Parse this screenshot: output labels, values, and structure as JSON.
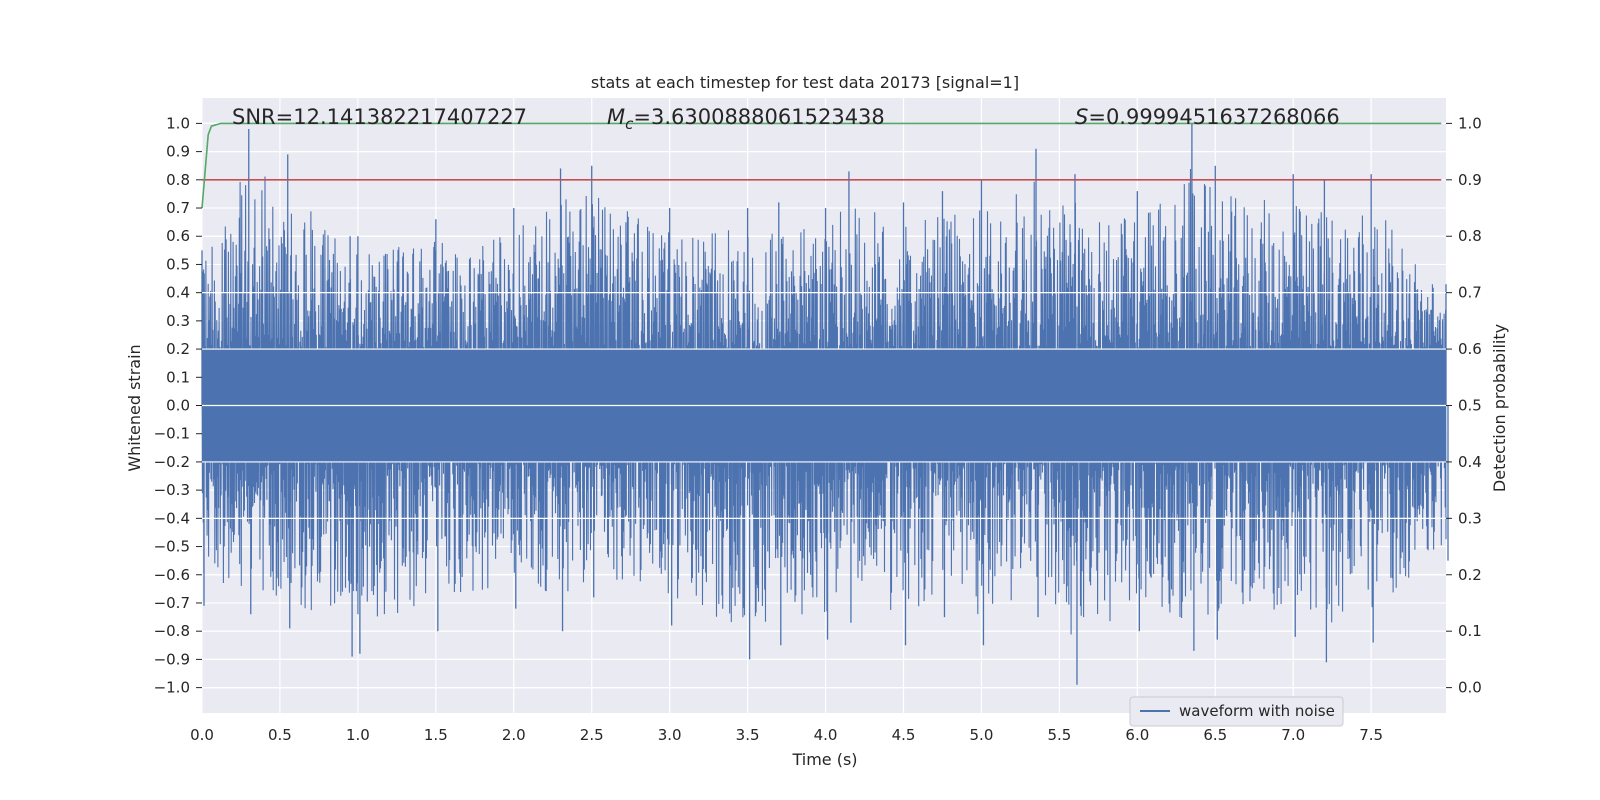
{
  "chart_data": {
    "type": "line",
    "title": "stats at each timestep for test data 20173 [signal=1]",
    "xlabel": "Time (s)",
    "ylabel_left": "Whitened strain",
    "ylabel_right": "Detection probability",
    "xlim": [
      0.0,
      7.98
    ],
    "ylim_left": [
      -1.09,
      1.09
    ],
    "ylim_right": [
      -0.045,
      1.045
    ],
    "x_ticks": [
      "0.0",
      "0.5",
      "1.0",
      "1.5",
      "2.0",
      "2.5",
      "3.0",
      "3.5",
      "4.0",
      "4.5",
      "5.0",
      "5.5",
      "6.0",
      "6.5",
      "7.0",
      "7.5"
    ],
    "y_ticks_left": [
      "1.0",
      "0.9",
      "0.8",
      "0.7",
      "0.6",
      "0.5",
      "0.4",
      "0.3",
      "0.2",
      "0.1",
      "0.0",
      "−0.1",
      "−0.2",
      "−0.3",
      "−0.4",
      "−0.5",
      "−0.6",
      "−0.7",
      "−0.8",
      "−0.9",
      "−1.0"
    ],
    "y_ticks_right": [
      "1.0",
      "0.9",
      "0.8",
      "0.7",
      "0.6",
      "0.5",
      "0.4",
      "0.3",
      "0.2",
      "0.1",
      "0.0"
    ],
    "grid": true,
    "legend_position": "lower-right",
    "annotations": {
      "snr": "SNR=12.141382217407227",
      "mc_symbol": "M",
      "mc_sub": "c",
      "mc_value": "=3.6300888061523438",
      "s_symbol": "S",
      "s_value": "=0.9999451637268066"
    },
    "series": [
      {
        "name": "waveform with noise",
        "axis": "left",
        "color": "#4c72b0",
        "kind": "dense-noise",
        "envelope_x": [
          0.0,
          0.3,
          0.55,
          0.95,
          1.0,
          1.5,
          2.0,
          2.3,
          2.5,
          3.0,
          3.5,
          3.7,
          4.0,
          4.15,
          4.5,
          4.75,
          5.0,
          5.35,
          5.6,
          6.0,
          6.35,
          6.5,
          7.0,
          7.2,
          7.5,
          7.98
        ],
        "envelope_max": [
          0.55,
          0.98,
          0.89,
          0.6,
          0.6,
          0.66,
          0.7,
          0.84,
          0.85,
          0.7,
          0.7,
          0.72,
          0.7,
          0.83,
          0.72,
          0.76,
          0.8,
          0.91,
          0.82,
          0.76,
          1.0,
          0.85,
          0.82,
          0.8,
          0.82,
          0.43
        ],
        "envelope_min": [
          -0.71,
          -0.74,
          -0.79,
          -0.89,
          -0.88,
          -0.8,
          -0.72,
          -0.8,
          -0.68,
          -0.78,
          -0.9,
          -0.85,
          -0.83,
          -0.77,
          -0.85,
          -0.75,
          -0.85,
          -0.75,
          -0.99,
          -0.8,
          -0.87,
          -0.83,
          -0.82,
          -0.91,
          -0.84,
          -0.55
        ]
      },
      {
        "name": "",
        "axis": "right",
        "color": "#55a868",
        "x": [
          0.0,
          0.04,
          0.06,
          0.12,
          7.95
        ],
        "y": [
          0.85,
          0.98,
          0.995,
          1.0,
          1.0
        ]
      },
      {
        "name": "",
        "axis": "right",
        "color": "#c44e52",
        "x": [
          0.0,
          7.95
        ],
        "y": [
          0.9,
          0.9
        ]
      }
    ],
    "colors": {
      "plot_background": "#eaeaf2",
      "grid": "#ffffff",
      "waveform": "#4c72b0",
      "probability": "#55a868",
      "threshold": "#c44e52"
    }
  }
}
